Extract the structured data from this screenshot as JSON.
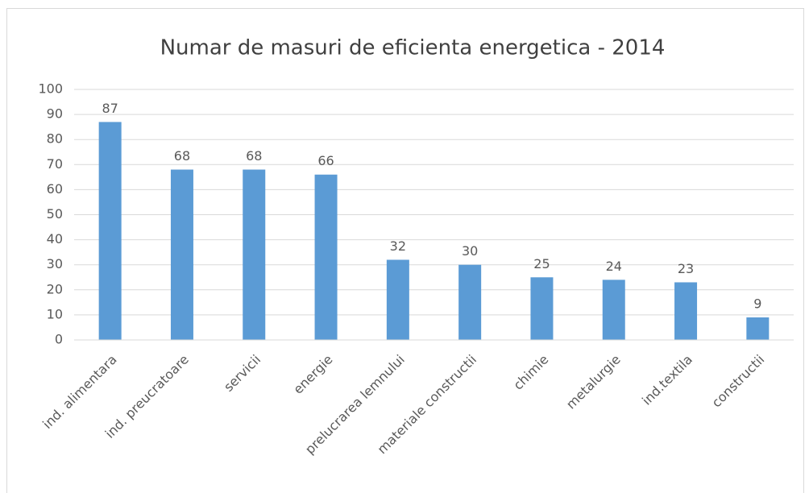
{
  "chart_data": {
    "type": "bar",
    "title": "Numar de masuri de eficienta energetica - 2014",
    "categories": [
      "ind. alimentara",
      "ind. preucratoare",
      "servicii",
      "energie",
      "prelucrarea lemnului",
      "materiale constructii",
      "chimie",
      "metalurgie",
      "ind.textila",
      "constructii"
    ],
    "values": [
      87,
      68,
      68,
      66,
      32,
      30,
      25,
      24,
      23,
      9
    ],
    "color": "#5b9bd5",
    "ylim": [
      0,
      100
    ],
    "yticks": [
      0,
      10,
      20,
      30,
      40,
      50,
      60,
      70,
      80,
      90,
      100
    ],
    "grid": true
  }
}
